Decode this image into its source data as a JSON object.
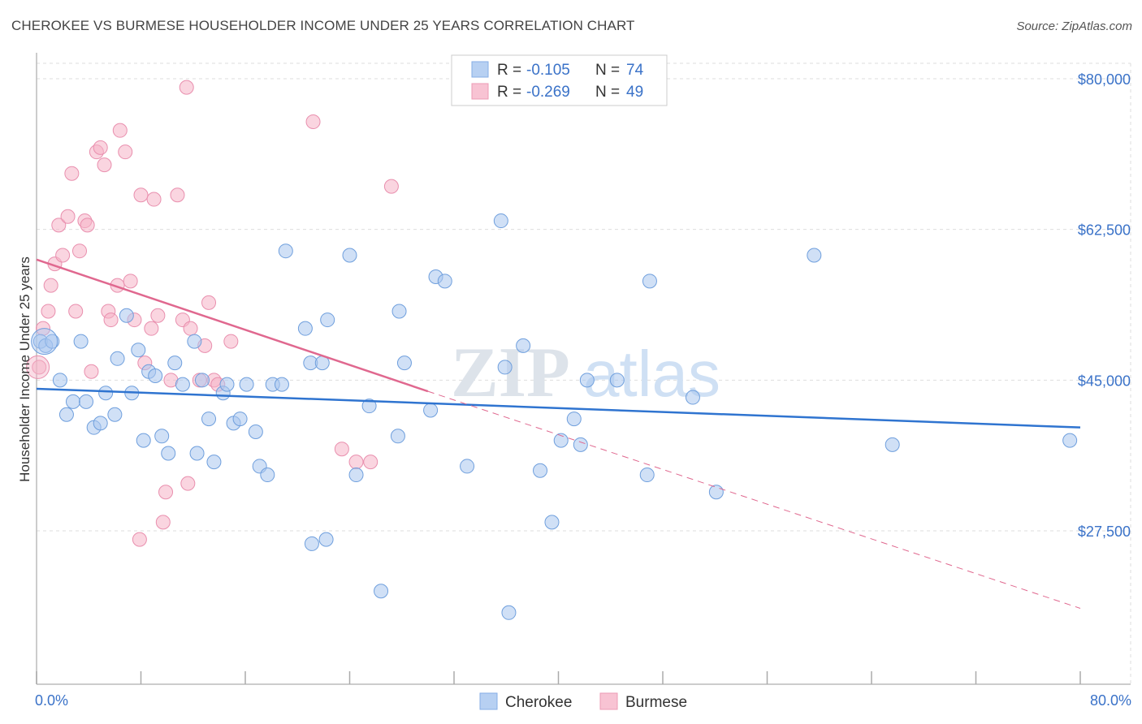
{
  "title": "CHEROKEE VS BURMESE HOUSEHOLDER INCOME UNDER 25 YEARS CORRELATION CHART",
  "source": "Source: ZipAtlas.com",
  "watermark": {
    "zip": "ZIP",
    "atlas": "atlas"
  },
  "legend": {
    "r_label": "R =",
    "n_label": "N =",
    "rows": [
      {
        "r": "-0.105",
        "n": "74"
      },
      {
        "r": "-0.269",
        "n": "49"
      }
    ]
  },
  "bottom_legend": [
    "Cherokee",
    "Burmese"
  ],
  "chart_data": {
    "type": "scatter",
    "title": "CHEROKEE VS BURMESE HOUSEHOLDER INCOME UNDER 25 YEARS CORRELATION CHART",
    "xlabel": "",
    "ylabel": "Householder Income Under 25 years",
    "xlim": [
      0,
      80
    ],
    "ylim": [
      10000,
      84000
    ],
    "x_tick_labels": [
      "0.0%",
      "80.0%"
    ],
    "y_ticks": [
      27500,
      45000,
      62500,
      80000
    ],
    "y_tick_labels": [
      "$27,500",
      "$45,000",
      "$62,500",
      "$80,000"
    ],
    "grid": true,
    "legend_position": "top-center",
    "colors": {
      "Cherokee": "#a9c6ef",
      "Burmese": "#f5b3c7",
      "cherokee_line": "#2f74d0",
      "burmese_line": "#e0688f"
    },
    "series": [
      {
        "name": "Cherokee",
        "R": -0.105,
        "N": 74,
        "trend": {
          "x": [
            0,
            80
          ],
          "y": [
            44000,
            39500
          ]
        },
        "points": [
          [
            0.3,
            49500
          ],
          [
            0.7,
            49000
          ],
          [
            1.2,
            49500
          ],
          [
            1.8,
            45000
          ],
          [
            2.3,
            41000
          ],
          [
            2.8,
            42500
          ],
          [
            3.4,
            49500
          ],
          [
            3.8,
            42500
          ],
          [
            4.4,
            39500
          ],
          [
            4.9,
            40000
          ],
          [
            5.3,
            43500
          ],
          [
            6.0,
            41000
          ],
          [
            6.2,
            47500
          ],
          [
            6.9,
            52500
          ],
          [
            7.3,
            43500
          ],
          [
            7.8,
            48500
          ],
          [
            8.2,
            38000
          ],
          [
            8.6,
            46000
          ],
          [
            9.1,
            45500
          ],
          [
            9.6,
            38500
          ],
          [
            10.1,
            36500
          ],
          [
            10.6,
            47000
          ],
          [
            11.2,
            44500
          ],
          [
            12.1,
            49500
          ],
          [
            12.3,
            36500
          ],
          [
            12.7,
            45000
          ],
          [
            13.2,
            40500
          ],
          [
            13.6,
            35500
          ],
          [
            14.3,
            43500
          ],
          [
            14.6,
            44500
          ],
          [
            15.1,
            40000
          ],
          [
            15.6,
            40500
          ],
          [
            16.1,
            44500
          ],
          [
            16.8,
            39000
          ],
          [
            17.1,
            35000
          ],
          [
            17.7,
            34000
          ],
          [
            18.1,
            44500
          ],
          [
            18.8,
            44500
          ],
          [
            19.1,
            60000
          ],
          [
            20.6,
            51000
          ],
          [
            21.0,
            47000
          ],
          [
            21.1,
            26000
          ],
          [
            21.9,
            47000
          ],
          [
            22.2,
            26500
          ],
          [
            22.3,
            52000
          ],
          [
            24.0,
            59500
          ],
          [
            24.5,
            34000
          ],
          [
            25.5,
            42000
          ],
          [
            26.4,
            20500
          ],
          [
            27.7,
            38500
          ],
          [
            27.8,
            53000
          ],
          [
            28.2,
            47000
          ],
          [
            30.2,
            41500
          ],
          [
            30.6,
            57000
          ],
          [
            31.3,
            56500
          ],
          [
            33.0,
            35000
          ],
          [
            35.6,
            63500
          ],
          [
            35.9,
            46500
          ],
          [
            36.2,
            18000
          ],
          [
            37.3,
            49000
          ],
          [
            38.6,
            34500
          ],
          [
            39.5,
            28500
          ],
          [
            40.2,
            38000
          ],
          [
            41.2,
            40500
          ],
          [
            41.7,
            37500
          ],
          [
            42.2,
            45000
          ],
          [
            44.5,
            45000
          ],
          [
            46.8,
            34000
          ],
          [
            47.0,
            56500
          ],
          [
            50.3,
            43000
          ],
          [
            52.1,
            32000
          ],
          [
            59.6,
            59500
          ],
          [
            65.6,
            37500
          ],
          [
            79.2,
            38000
          ]
        ]
      },
      {
        "name": "Burmese",
        "R": -0.269,
        "N": 49,
        "trend_solid": {
          "x": [
            0,
            30
          ],
          "y": [
            59000,
            43700
          ]
        },
        "trend_dashed": {
          "x": [
            30,
            80
          ],
          "y": [
            43700,
            18500
          ]
        },
        "points": [
          [
            0.2,
            46500
          ],
          [
            0.5,
            51000
          ],
          [
            0.9,
            53000
          ],
          [
            1.1,
            56000
          ],
          [
            1.4,
            58500
          ],
          [
            1.7,
            63000
          ],
          [
            2.0,
            59500
          ],
          [
            2.4,
            64000
          ],
          [
            2.7,
            69000
          ],
          [
            3.0,
            53000
          ],
          [
            3.3,
            60000
          ],
          [
            3.7,
            63500
          ],
          [
            3.9,
            63000
          ],
          [
            4.2,
            46000
          ],
          [
            4.6,
            71500
          ],
          [
            4.9,
            72000
          ],
          [
            5.2,
            70000
          ],
          [
            5.5,
            53000
          ],
          [
            5.7,
            52000
          ],
          [
            6.2,
            56000
          ],
          [
            6.4,
            74000
          ],
          [
            6.8,
            71500
          ],
          [
            7.2,
            56500
          ],
          [
            7.5,
            52000
          ],
          [
            7.9,
            26500
          ],
          [
            8.0,
            66500
          ],
          [
            8.3,
            47000
          ],
          [
            8.8,
            51000
          ],
          [
            9.0,
            66000
          ],
          [
            9.3,
            52500
          ],
          [
            9.7,
            28500
          ],
          [
            9.9,
            32000
          ],
          [
            10.3,
            45000
          ],
          [
            10.8,
            66500
          ],
          [
            11.2,
            52000
          ],
          [
            11.6,
            33000
          ],
          [
            11.8,
            51000
          ],
          [
            12.5,
            45000
          ],
          [
            12.9,
            49000
          ],
          [
            13.2,
            54000
          ],
          [
            13.6,
            45000
          ],
          [
            13.9,
            44500
          ],
          [
            14.9,
            49500
          ],
          [
            21.2,
            75000
          ],
          [
            23.4,
            37000
          ],
          [
            24.5,
            35500
          ],
          [
            25.6,
            35500
          ],
          [
            27.2,
            67500
          ],
          [
            11.5,
            79000
          ]
        ]
      }
    ]
  }
}
